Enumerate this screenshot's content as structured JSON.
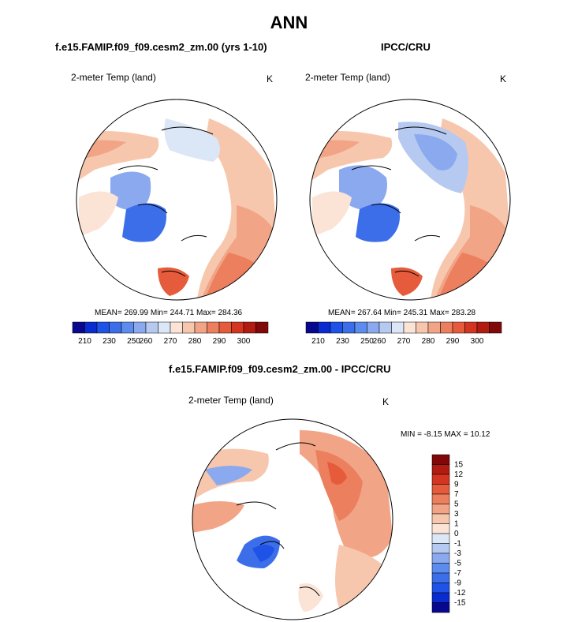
{
  "title": "ANN",
  "colors": {
    "levels": [
      "#08088f",
      "#0a2bd0",
      "#1f52e6",
      "#3b6ee8",
      "#5c8ced",
      "#8aa9ef",
      "#b5c9f1",
      "#dbe6f6",
      "#fbe3d6",
      "#f7c7ad",
      "#f2a486",
      "#ec7f5e",
      "#e55b3b",
      "#d33521",
      "#b21b12",
      "#800808"
    ],
    "diff_levels": [
      "#08088f",
      "#0a2bd0",
      "#1f52e6",
      "#3b6ee8",
      "#5c8ced",
      "#8aa9ef",
      "#b5c9f1",
      "#dbe6f6",
      "#fbe3d6",
      "#f7c7ad",
      "#f2a486",
      "#ec7f5e",
      "#e55b3b",
      "#d33521",
      "#b21b12",
      "#800808"
    ]
  },
  "panels": [
    {
      "subtitle": "f.e15.FAMIP.f09_f09.cesm2_zm.00 (yrs 1-10)",
      "variable": "2-meter Temp (land)",
      "units": "K",
      "stats": "MEAN= 269.99  Min= 244.71  Max= 284.36",
      "colorbar_labels": [
        "210",
        "230",
        "250",
        "260",
        "270",
        "280",
        "290",
        "300"
      ]
    },
    {
      "subtitle": "IPCC/CRU",
      "variable": "2-meter Temp (land)",
      "units": "K",
      "stats": "MEAN= 267.64  Min= 245.31  Max= 283.28",
      "colorbar_labels": [
        "210",
        "230",
        "250",
        "260",
        "270",
        "280",
        "290",
        "300"
      ]
    }
  ],
  "diff_panel": {
    "subtitle": "f.e15.FAMIP.f09_f09.cesm2_zm.00 - IPCC/CRU",
    "variable": "2-meter Temp (land)",
    "units": "K",
    "stats": "MIN =  -8.15 MAX =  10.12",
    "colorbar_labels": [
      "15",
      "12",
      "9",
      "7",
      "5",
      "3",
      "1",
      "0",
      "-1",
      "-3",
      "-5",
      "-7",
      "-9",
      "-12",
      "-15"
    ]
  }
}
